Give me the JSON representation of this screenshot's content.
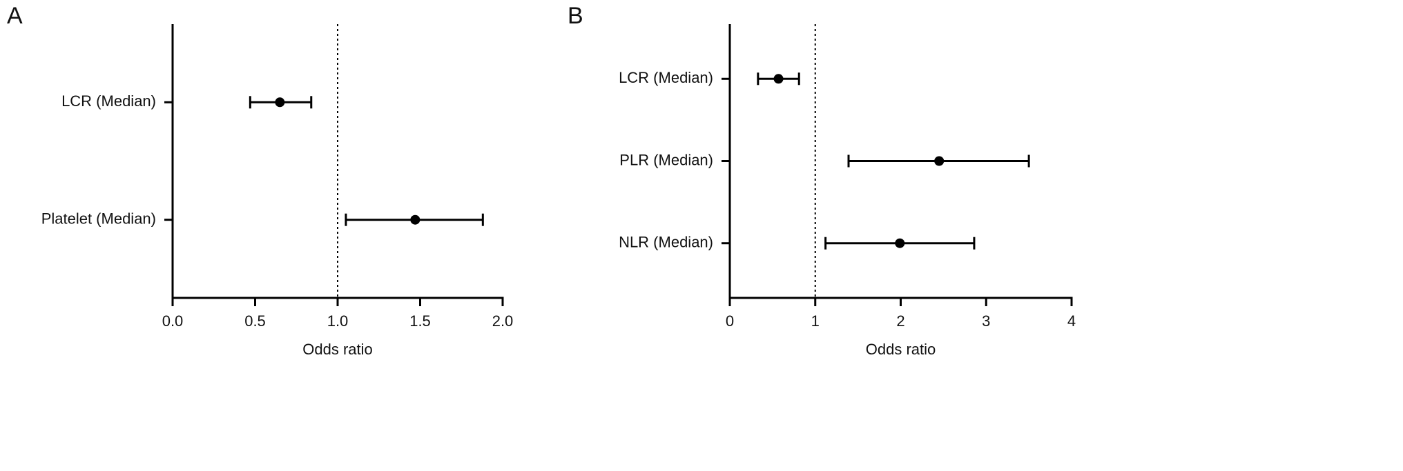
{
  "chart_data": [
    {
      "type": "forest",
      "panel_label": "A",
      "xlabel": "Odds ratio",
      "categories": [
        "LCR (Median)",
        "Platelet (Median)"
      ],
      "values": [
        0.65,
        1.47
      ],
      "lower": [
        0.47,
        1.05
      ],
      "upper": [
        0.84,
        1.88
      ],
      "color": "#000000",
      "reference_line": 1,
      "xlim": [
        0,
        2
      ],
      "xticks": [
        {
          "value": 0,
          "label": "0.0"
        },
        0.5,
        {
          "value": 1,
          "label": "1.0"
        },
        1.5,
        {
          "value": 2,
          "label": "2.0"
        }
      ]
    },
    {
      "type": "forest",
      "panel_label": "B",
      "xlabel": "Odds ratio",
      "categories": [
        "LCR (Median)",
        "PLR (Median)",
        "NLR (Median)"
      ],
      "values": [
        0.57,
        2.45,
        1.99
      ],
      "lower": [
        0.33,
        1.39,
        1.12
      ],
      "upper": [
        0.81,
        3.5,
        2.86
      ],
      "color": "#000000",
      "reference_line": 1,
      "xlim": [
        0,
        4
      ],
      "xticks": [
        0,
        1,
        2,
        3,
        4
      ]
    }
  ]
}
